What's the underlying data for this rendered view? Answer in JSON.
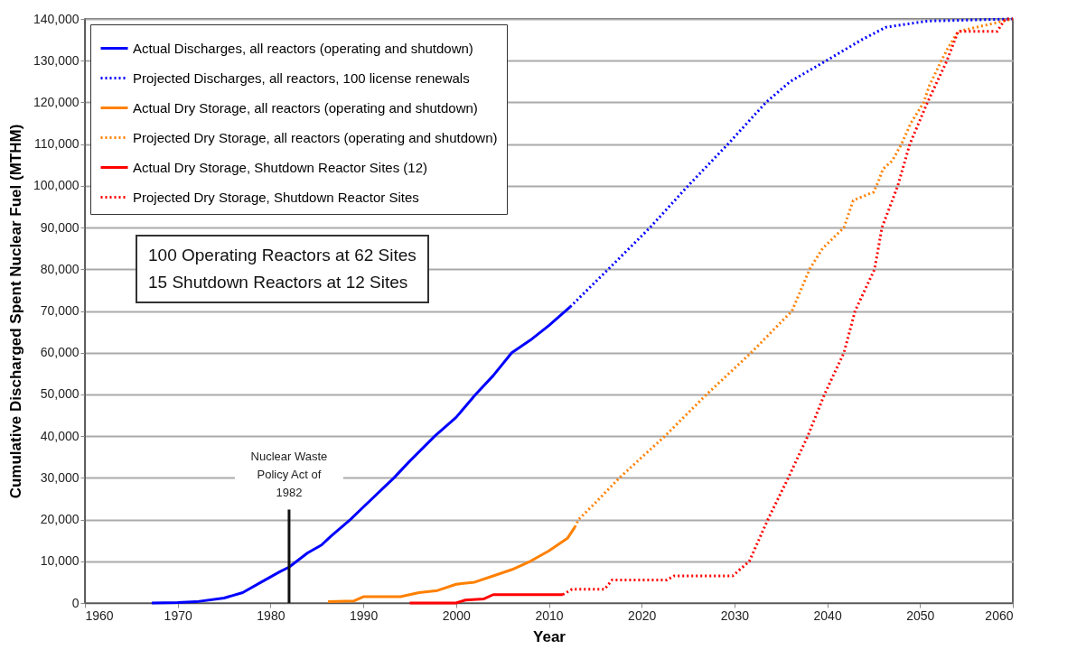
{
  "chart_data": {
    "type": "line",
    "xlabel": "Year",
    "ylabel": "Cumulative Discharged Spent Nuclear Fuel (MTHM)",
    "xlim": [
      1960,
      2060
    ],
    "xticks": [
      1960,
      1970,
      1980,
      1990,
      2000,
      2010,
      2020,
      2030,
      2040,
      2050,
      2060
    ],
    "ylim": [
      0,
      140000
    ],
    "yticks": [
      0,
      {
        "value": 10000,
        "label": "10,000"
      },
      {
        "value": 20000,
        "label": "20,000"
      },
      {
        "value": 30000,
        "label": "30,000"
      },
      {
        "value": 40000,
        "label": "40,000"
      },
      {
        "value": 50000,
        "label": "50,000"
      },
      {
        "value": 60000,
        "label": "60,000"
      },
      {
        "value": 70000,
        "label": "70,000"
      },
      {
        "value": 80000,
        "label": "80,000"
      },
      {
        "value": 90000,
        "label": "90,000"
      },
      {
        "value": 100000,
        "label": "100,000"
      },
      {
        "value": 110000,
        "label": "110,000"
      },
      {
        "value": 120000,
        "label": "120,000"
      },
      {
        "value": 130000,
        "label": "130,000"
      },
      {
        "value": 140000,
        "label": "140,000"
      }
    ],
    "grid": "y",
    "legend": "top left",
    "marker": "none",
    "series": [
      {
        "name": "Actual Discharges, all reactors (operating and shutdown)",
        "color": "#0000ff",
        "line_style": "solid",
        "x": [
          1967.2,
          1970,
          1972,
          1975,
          1977,
          1979,
          1981,
          1982,
          1984,
          1985.5,
          1986.5,
          1988.6,
          1990,
          1993.3,
          1995,
          1997.7,
          2000,
          2002.1,
          2004,
          2006,
          2008,
          2010,
          2012.3
        ],
        "values": [
          0,
          100,
          300,
          1200,
          2500,
          5000,
          7500,
          8600,
          12000,
          13900,
          16000,
          20000,
          23000,
          30000,
          34000,
          40000,
          44500,
          50000,
          54500,
          60000,
          63000,
          66500,
          71000
        ]
      },
      {
        "name": "Projected Discharges, all reactors, 100 license renewals",
        "color": "#0000ff",
        "line_style": "dotted",
        "x": [
          2012.3,
          2016.4,
          2020.9,
          2025,
          2029.3,
          2033.4,
          2036,
          2039.9,
          2043.7,
          2046.3,
          2050.8,
          2060
        ],
        "values": [
          71000,
          80000,
          90000,
          100000,
          110000,
          120000,
          125000,
          130000,
          135000,
          138000,
          139500,
          140000
        ]
      },
      {
        "name": "Actual Dry Storage, all reactors (operating and shutdown)",
        "color": "#ff8000",
        "line_style": "solid",
        "x": [
          1986.2,
          1989,
          1990,
          1994,
          1996,
          1998,
          2000,
          2002,
          2004,
          2006,
          2008,
          2010,
          2012,
          2012.8
        ],
        "values": [
          300,
          500,
          1500,
          1500,
          2500,
          3000,
          4500,
          5000,
          6500,
          8000,
          10000,
          12500,
          15500,
          18200
        ]
      },
      {
        "name": "Projected Dry Storage, all reactors (operating and shutdown)",
        "color": "#ff8000",
        "line_style": "dotted",
        "x": [
          2012.8,
          2013.2,
          2015,
          2017.6,
          2022.5,
          2027,
          2031.8,
          2036.2,
          2038.1,
          2039.5,
          2041.8,
          2042.8,
          2045,
          2045.5,
          2046,
          2047,
          2048,
          2049,
          2050.4,
          2051,
          2052.3,
          2053,
          2054.1,
          2060
        ],
        "values": [
          18200,
          20000,
          24000,
          30000,
          40000,
          50000,
          60000,
          70000,
          80000,
          85000,
          90000,
          96500,
          98500,
          101000,
          104000,
          106000,
          110000,
          115000,
          120000,
          124000,
          130000,
          133000,
          137000,
          140000
        ]
      },
      {
        "name": "Actual Dry Storage, Shutdown Reactor Sites (12)",
        "color": "#ff0000",
        "line_style": "solid",
        "x": [
          1995,
          2000,
          2001,
          2003,
          2004,
          2011.5
        ],
        "values": [
          0,
          0,
          700,
          1000,
          2000,
          2000
        ]
      },
      {
        "name": "Projected Dry Storage, Shutdown Reactor Sites",
        "color": "#ff0000",
        "line_style": "dotted",
        "x": [
          2011.5,
          2012.5,
          2016,
          2016.8,
          2022.7,
          2023.5,
          2029.8,
          2031.6,
          2033.6,
          2035.8,
          2037.9,
          2039.7,
          2041.8,
          2043,
          2045.1,
          2045.9,
          2047.6,
          2048.9,
          2050.8,
          2052.9,
          2054.1,
          2058.3,
          2059.2,
          2060
        ],
        "values": [
          2000,
          3300,
          3300,
          5500,
          5500,
          6500,
          6500,
          10000,
          20000,
          30000,
          40000,
          50000,
          60000,
          70000,
          80000,
          90000,
          100000,
          110000,
          120000,
          130000,
          137000,
          137000,
          140000,
          140000
        ]
      }
    ],
    "ref_lines": [
      {
        "axis": "x",
        "value": 1982,
        "label": "Nuclear Waste Policy Act of 1982",
        "color": "#111111"
      }
    ],
    "annotations": [
      "100 Operating Reactors at 62 Sites",
      "15 Shutdown Reactors at 12 Sites"
    ]
  }
}
